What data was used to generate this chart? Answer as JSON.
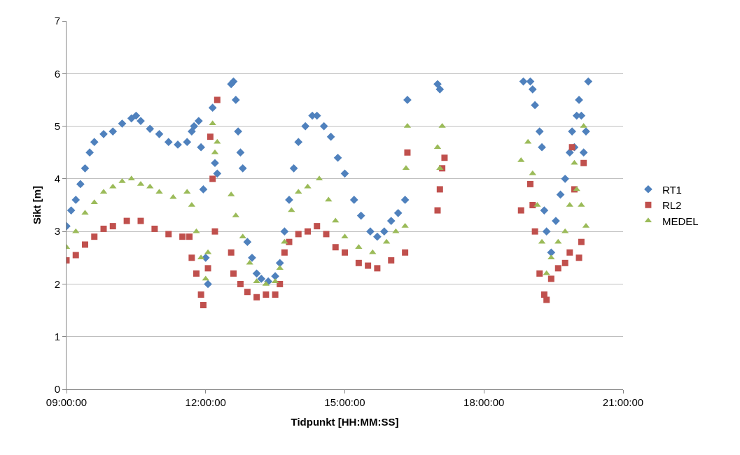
{
  "chart_data": {
    "type": "scatter",
    "xlabel": "Tidpunkt [HH:MM:SS]",
    "ylabel": "Sikt [m]",
    "xlim": [
      9,
      21
    ],
    "xticks": [
      {
        "value": 9,
        "label": "09:00:00"
      },
      {
        "value": 12,
        "label": "12:00:00"
      },
      {
        "value": 15,
        "label": "15:00:00"
      },
      {
        "value": 18,
        "label": "18:00:00"
      },
      {
        "value": 21,
        "label": "21:00:00"
      }
    ],
    "ylim": [
      0,
      7
    ],
    "yticks": [
      0,
      1,
      2,
      3,
      4,
      5,
      6,
      7
    ],
    "grid": "y",
    "legend": "right",
    "series": [
      {
        "name": "RT1",
        "color": "#4f81bd",
        "marker": "diamond",
        "x": [
          9.0,
          9.1,
          9.2,
          9.3,
          9.4,
          9.5,
          9.6,
          9.8,
          10.0,
          10.2,
          10.4,
          10.5,
          10.6,
          10.8,
          11.0,
          11.2,
          11.4,
          11.6,
          11.7,
          11.75,
          11.85,
          11.9,
          11.95,
          12.0,
          12.05,
          12.15,
          12.2,
          12.25,
          12.55,
          12.6,
          12.65,
          12.7,
          12.75,
          12.8,
          12.9,
          13.0,
          13.1,
          13.2,
          13.35,
          13.5,
          13.6,
          13.7,
          13.8,
          13.9,
          14.0,
          14.15,
          14.3,
          14.4,
          14.55,
          14.7,
          14.85,
          15.0,
          15.2,
          15.35,
          15.55,
          15.7,
          15.85,
          16.0,
          16.15,
          16.3,
          16.35,
          17.0,
          17.05,
          18.85,
          19.0,
          19.05,
          19.1,
          19.2,
          19.25,
          19.3,
          19.35,
          19.45,
          19.55,
          19.65,
          19.75,
          19.85,
          19.9,
          19.95,
          20.0,
          20.05,
          20.1,
          20.15,
          20.2,
          20.25
        ],
        "values": [
          3.1,
          3.4,
          3.6,
          3.9,
          4.2,
          4.5,
          4.7,
          4.85,
          4.9,
          5.05,
          5.15,
          5.2,
          5.1,
          4.95,
          4.85,
          4.7,
          4.65,
          4.7,
          4.9,
          5.0,
          5.1,
          4.6,
          3.8,
          2.5,
          2.0,
          5.35,
          4.3,
          4.1,
          5.8,
          5.85,
          5.5,
          4.9,
          4.5,
          4.2,
          2.8,
          2.5,
          2.2,
          2.1,
          2.05,
          2.15,
          2.4,
          3.0,
          3.6,
          4.2,
          4.7,
          5.0,
          5.2,
          5.2,
          5.0,
          4.8,
          4.4,
          4.1,
          3.6,
          3.3,
          3.0,
          2.9,
          3.0,
          3.2,
          3.35,
          3.6,
          5.5,
          5.8,
          5.7,
          5.85,
          5.85,
          5.7,
          5.4,
          4.9,
          4.6,
          3.4,
          3.0,
          2.6,
          3.2,
          3.7,
          4.0,
          4.5,
          4.9,
          4.6,
          5.2,
          5.5,
          5.2,
          4.5,
          4.9,
          5.85
        ]
      },
      {
        "name": "RL2",
        "color": "#c0504d",
        "marker": "square",
        "x": [
          9.0,
          9.2,
          9.4,
          9.6,
          9.8,
          10.0,
          10.3,
          10.6,
          10.9,
          11.2,
          11.5,
          11.65,
          11.7,
          11.8,
          11.9,
          11.95,
          12.05,
          12.1,
          12.15,
          12.2,
          12.25,
          12.55,
          12.6,
          12.75,
          12.9,
          13.1,
          13.3,
          13.5,
          13.6,
          13.7,
          13.8,
          14.0,
          14.2,
          14.4,
          14.6,
          14.8,
          15.0,
          15.3,
          15.5,
          15.7,
          16.0,
          16.3,
          16.35,
          17.0,
          17.05,
          17.1,
          17.15,
          18.8,
          19.0,
          19.05,
          19.1,
          19.2,
          19.3,
          19.35,
          19.45,
          19.6,
          19.75,
          19.85,
          19.9,
          19.95,
          20.05,
          20.1,
          20.15
        ],
        "values": [
          2.45,
          2.55,
          2.75,
          2.9,
          3.05,
          3.1,
          3.2,
          3.2,
          3.05,
          2.95,
          2.9,
          2.9,
          2.5,
          2.2,
          1.8,
          1.6,
          2.3,
          4.8,
          4.0,
          3.0,
          5.5,
          2.6,
          2.2,
          2.0,
          1.85,
          1.75,
          1.8,
          1.8,
          2.0,
          2.6,
          2.8,
          2.95,
          3.0,
          3.1,
          2.95,
          2.7,
          2.6,
          2.4,
          2.35,
          2.3,
          2.45,
          2.6,
          4.5,
          3.4,
          3.8,
          4.2,
          4.4,
          3.4,
          3.9,
          3.5,
          3.0,
          2.2,
          1.8,
          1.7,
          2.1,
          2.3,
          2.4,
          2.6,
          4.6,
          3.8,
          2.5,
          2.8,
          4.3
        ]
      },
      {
        "name": "MEDEL",
        "color": "#9bbb59",
        "marker": "triangle",
        "x": [
          9.0,
          9.2,
          9.4,
          9.6,
          9.8,
          10.0,
          10.2,
          10.4,
          10.6,
          10.8,
          11.0,
          11.3,
          11.6,
          11.7,
          11.8,
          11.9,
          12.0,
          12.05,
          12.15,
          12.2,
          12.25,
          12.55,
          12.65,
          12.8,
          12.95,
          13.1,
          13.3,
          13.5,
          13.6,
          13.7,
          13.85,
          14.0,
          14.2,
          14.45,
          14.65,
          14.8,
          15.0,
          15.3,
          15.6,
          15.9,
          16.1,
          16.3,
          16.35,
          16.32,
          17.0,
          17.05,
          17.1,
          18.8,
          18.95,
          19.05,
          19.15,
          19.25,
          19.35,
          19.45,
          19.6,
          19.75,
          19.85,
          19.95,
          20.0,
          20.1,
          20.15,
          20.2
        ],
        "values": [
          2.7,
          3.0,
          3.35,
          3.55,
          3.75,
          3.85,
          3.95,
          4.0,
          3.9,
          3.85,
          3.75,
          3.65,
          3.75,
          3.5,
          3.0,
          2.5,
          2.1,
          2.6,
          5.05,
          4.5,
          4.7,
          3.7,
          3.3,
          2.9,
          2.4,
          2.05,
          2.0,
          2.05,
          2.3,
          2.8,
          3.4,
          3.75,
          3.85,
          4.0,
          3.6,
          3.2,
          2.9,
          2.7,
          2.6,
          2.8,
          3.0,
          3.1,
          5.0,
          4.2,
          4.6,
          4.2,
          5.0,
          4.35,
          4.7,
          4.1,
          3.5,
          2.8,
          2.2,
          2.5,
          2.8,
          3.0,
          3.5,
          4.3,
          3.8,
          3.5,
          5.0,
          3.1
        ]
      }
    ]
  }
}
